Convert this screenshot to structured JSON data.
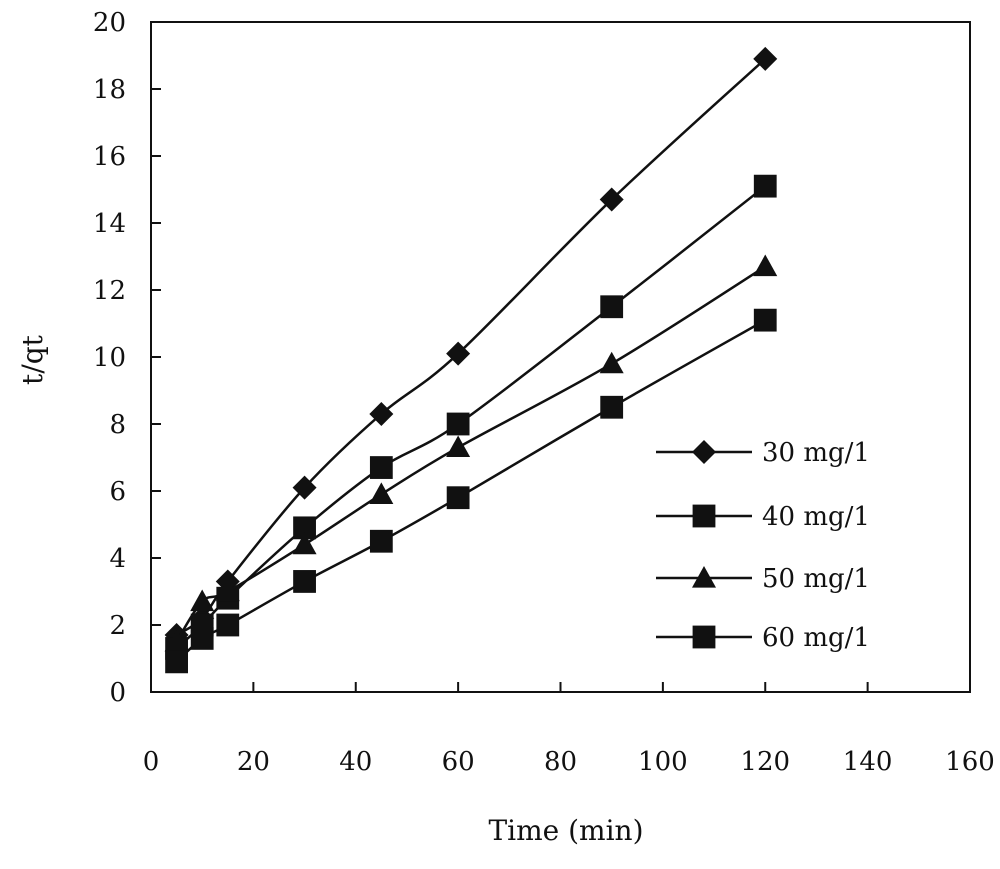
{
  "chart_data": {
    "type": "line",
    "xlabel": "Time (min)",
    "ylabel": "t/qt",
    "xlim": [
      0,
      160
    ],
    "ylim": [
      0,
      20
    ],
    "xticks": [
      0,
      20,
      40,
      60,
      80,
      100,
      120,
      140,
      160
    ],
    "yticks": [
      0,
      2,
      4,
      6,
      8,
      10,
      12,
      14,
      16,
      18,
      20
    ],
    "grid": false,
    "legend_position": "right",
    "x": [
      5,
      10,
      15,
      30,
      45,
      60,
      90,
      120
    ],
    "series": [
      {
        "name": "30 mg/1",
        "marker": "diamond",
        "values": [
          1.7,
          2.2,
          3.3,
          6.1,
          8.3,
          10.1,
          14.7,
          18.9
        ]
      },
      {
        "name": "40 mg/1",
        "marker": "square",
        "values": [
          1.3,
          2.0,
          2.8,
          4.9,
          6.7,
          8.0,
          11.5,
          15.1
        ]
      },
      {
        "name": "50 mg/1",
        "marker": "triangle",
        "values": [
          1.5,
          2.7,
          3.0,
          4.4,
          5.9,
          7.3,
          9.8,
          12.7
        ]
      },
      {
        "name": "60 mg/1",
        "marker": "square",
        "values": [
          0.9,
          1.6,
          2.0,
          3.3,
          4.5,
          5.8,
          8.5,
          11.1
        ]
      }
    ],
    "color": "#111111"
  }
}
